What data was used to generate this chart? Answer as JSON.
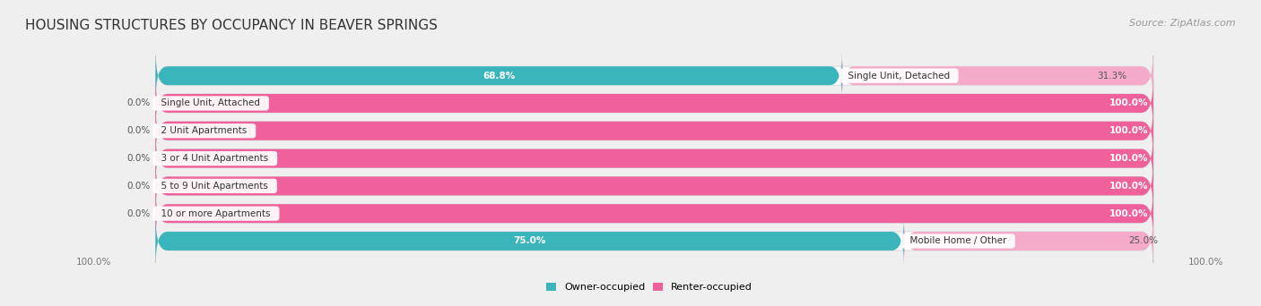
{
  "title": "HOUSING STRUCTURES BY OCCUPANCY IN BEAVER SPRINGS",
  "source": "Source: ZipAtlas.com",
  "categories": [
    "Single Unit, Detached",
    "Single Unit, Attached",
    "2 Unit Apartments",
    "3 or 4 Unit Apartments",
    "5 to 9 Unit Apartments",
    "10 or more Apartments",
    "Mobile Home / Other"
  ],
  "owner_pct": [
    68.8,
    0.0,
    0.0,
    0.0,
    0.0,
    0.0,
    75.0
  ],
  "renter_pct": [
    31.3,
    100.0,
    100.0,
    100.0,
    100.0,
    100.0,
    25.0
  ],
  "owner_color": "#3ab5bb",
  "renter_color": "#f0609a",
  "renter_light": "#f4aac8",
  "background_color": "#efefef",
  "title_fontsize": 11,
  "source_fontsize": 8,
  "label_fontsize": 7.5,
  "pct_fontsize": 7.5,
  "bar_height": 0.68
}
